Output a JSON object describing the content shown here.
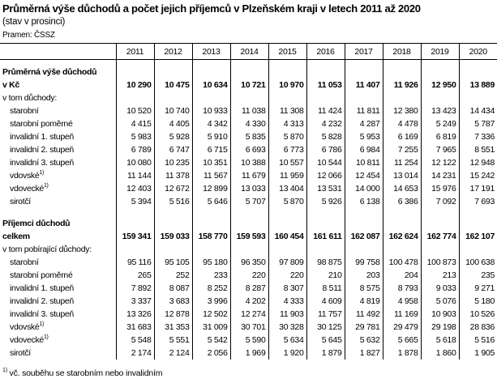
{
  "title": "Průměrná výše důchodů a počet jejich příjemců v Plzeňském kraji v letech 2011 až 2020",
  "subtitle": "(stav v prosinci)",
  "source": "Pramen: ČSSZ",
  "years": [
    "2011",
    "2012",
    "2013",
    "2014",
    "2015",
    "2016",
    "2017",
    "2018",
    "2019",
    "2020"
  ],
  "sections": [
    {
      "heading": "Průměrná výše důchodů",
      "total_label": "v Kč",
      "total": [
        "10 290",
        "10 475",
        "10 634",
        "10 721",
        "10 970",
        "11 053",
        "11 407",
        "11 926",
        "12 950",
        "13 889"
      ],
      "subheading": "v tom důchody:",
      "rows": [
        {
          "label": "starobní",
          "values": [
            "10 520",
            "10 740",
            "10 933",
            "11 038",
            "11 308",
            "11 424",
            "11 811",
            "12 380",
            "13 423",
            "14 434"
          ]
        },
        {
          "label": "starobní poměrné",
          "values": [
            "4 415",
            "4 405",
            "4 342",
            "4 330",
            "4 313",
            "4 232",
            "4 287",
            "4 478",
            "5 249",
            "5 787"
          ]
        },
        {
          "label": "invalidní 1. stupeň",
          "values": [
            "5 983",
            "5 928",
            "5 910",
            "5 835",
            "5 870",
            "5 828",
            "5 953",
            "6 169",
            "6 819",
            "7 336"
          ]
        },
        {
          "label": "invalidní 2. stupeň",
          "values": [
            "6 789",
            "6 747",
            "6 715",
            "6 693",
            "6 773",
            "6 786",
            "6 984",
            "7 255",
            "7 965",
            "8 551"
          ]
        },
        {
          "label": "invalidní 3. stupeň",
          "values": [
            "10 080",
            "10 235",
            "10 351",
            "10 388",
            "10 557",
            "10 544",
            "10 811",
            "11 254",
            "12 122",
            "12 948"
          ]
        },
        {
          "label": "vdovské",
          "sup": "1)",
          "values": [
            "11 144",
            "11 378",
            "11 567",
            "11 679",
            "11 959",
            "12 066",
            "12 454",
            "13 014",
            "14 231",
            "15 242"
          ]
        },
        {
          "label": "vdovecké",
          "sup": "1)",
          "values": [
            "12 403",
            "12 672",
            "12 899",
            "13 033",
            "13 404",
            "13 531",
            "14 000",
            "14 653",
            "15 976",
            "17 191"
          ]
        },
        {
          "label": "sirotčí",
          "values": [
            "5 394",
            "5 516",
            "5 646",
            "5 707",
            "5 870",
            "5 926",
            "6 138",
            "6 386",
            "7 092",
            "7 693"
          ]
        }
      ]
    },
    {
      "heading": "Příjemci důchodů",
      "total_label": "celkem",
      "total": [
        "159 341",
        "159 033",
        "158 770",
        "159 593",
        "160 454",
        "161 611",
        "162 087",
        "162 624",
        "162 774",
        "162 107"
      ],
      "subheading": "v tom pobírající důchody:",
      "rows": [
        {
          "label": "starobní",
          "values": [
            "95 116",
            "95 105",
            "95 180",
            "96 350",
            "97 809",
            "98 875",
            "99 758",
            "100 478",
            "100 873",
            "100 638"
          ]
        },
        {
          "label": "starobní poměrné",
          "values": [
            "265",
            "252",
            "233",
            "220",
            "220",
            "210",
            "203",
            "204",
            "213",
            "235"
          ]
        },
        {
          "label": "invalidní 1. stupeň",
          "values": [
            "7 892",
            "8 087",
            "8 252",
            "8 287",
            "8 307",
            "8 511",
            "8 575",
            "8 793",
            "9 033",
            "9 271"
          ]
        },
        {
          "label": "invalidní 2. stupeň",
          "values": [
            "3 337",
            "3 683",
            "3 996",
            "4 202",
            "4 333",
            "4 609",
            "4 819",
            "4 958",
            "5 076",
            "5 180"
          ]
        },
        {
          "label": "invalidní 3. stupeň",
          "values": [
            "13 326",
            "12 878",
            "12 502",
            "12 274",
            "11 903",
            "11 757",
            "11 492",
            "11 169",
            "10 903",
            "10 526"
          ]
        },
        {
          "label": "vdovské",
          "sup": "1)",
          "values": [
            "31 683",
            "31 353",
            "31 009",
            "30 701",
            "30 328",
            "30 125",
            "29 781",
            "29 479",
            "29 198",
            "28 836"
          ]
        },
        {
          "label": "vdovecké",
          "sup": "1)",
          "values": [
            "5 548",
            "5 551",
            "5 542",
            "5 590",
            "5 634",
            "5 645",
            "5 632",
            "5 665",
            "5 618",
            "5 516"
          ]
        },
        {
          "label": "sirotčí",
          "values": [
            "2 174",
            "2 124",
            "2 056",
            "1 969",
            "1 920",
            "1 879",
            "1 827",
            "1 878",
            "1 860",
            "1 905"
          ]
        }
      ]
    }
  ],
  "footnote": {
    "mark": "1)",
    "text": "vč. souběhu se starobním nebo invalidním"
  }
}
